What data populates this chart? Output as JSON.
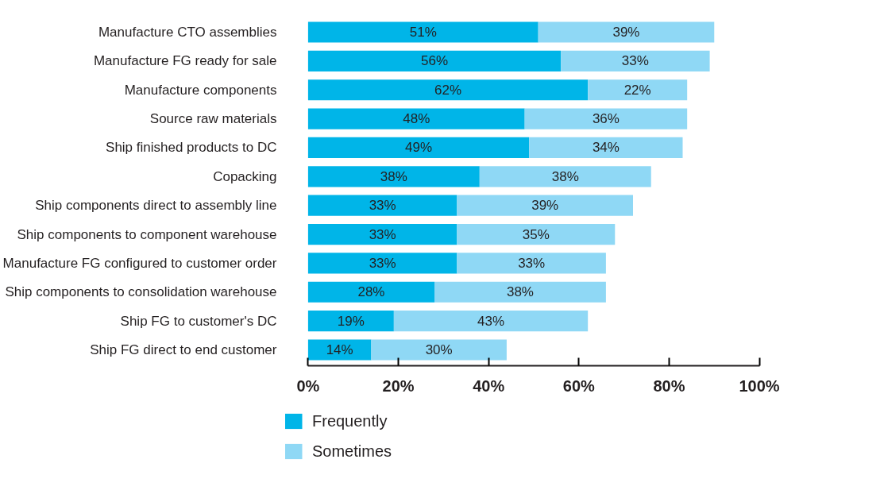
{
  "chart_data": {
    "type": "bar",
    "orientation": "horizontal",
    "stacked": true,
    "grid": false,
    "legend": "bottom",
    "categories": [
      "Manufacture CTO assemblies",
      "Manufacture FG ready for sale",
      "Manufacture components",
      "Source raw materials",
      "Ship finished products to DC",
      "Copacking",
      "Ship components direct to assembly line",
      "Ship components to component warehouse",
      "Manufacture FG configured to customer order",
      "Ship components to consolidation warehouse",
      "Ship FG to customer's DC",
      "Ship FG direct to end customer"
    ],
    "series": [
      {
        "name": "Frequently",
        "color": "#00b5e8",
        "values": [
          51,
          56,
          62,
          48,
          49,
          38,
          33,
          33,
          33,
          28,
          19,
          14
        ],
        "value_labels": [
          "51%",
          "56%",
          "62%",
          "48%",
          "49%",
          "38%",
          "33%",
          "33%",
          "33%",
          "28%",
          "19%",
          "14%"
        ]
      },
      {
        "name": "Sometimes",
        "color": "#8fd8f5",
        "values": [
          39,
          33,
          22,
          36,
          34,
          38,
          39,
          35,
          33,
          38,
          43,
          30
        ],
        "value_labels": [
          "39%",
          "33%",
          "22%",
          "36%",
          "34%",
          "38%",
          "39%",
          "35%",
          "33%",
          "38%",
          "43%",
          "30%"
        ]
      }
    ],
    "xlim": [
      0,
      100
    ],
    "xticks": [
      {
        "value": 0,
        "label": "0%"
      },
      {
        "value": 20,
        "label": "20%"
      },
      {
        "value": 40,
        "label": "40%"
      },
      {
        "value": 60,
        "label": "60%"
      },
      {
        "value": 80,
        "label": "80%"
      },
      {
        "value": 100,
        "label": "100%"
      }
    ]
  }
}
